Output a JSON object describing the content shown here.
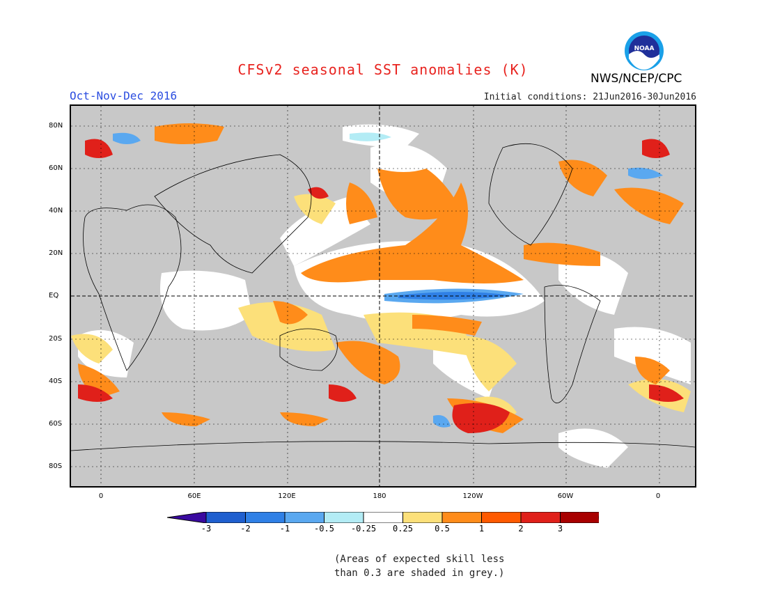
{
  "header": {
    "title": "CFSv2 seasonal SST anomalies (K)",
    "period": "Oct-Nov-Dec 2016",
    "initial_conditions": "Initial conditions: 21Jun2016-30Jun2016",
    "agency": "NWS/NCEP/CPC",
    "logo_text": "NOAA"
  },
  "axes": {
    "lat_ticks": [
      "80N",
      "60N",
      "40N",
      "20N",
      "EQ",
      "20S",
      "40S",
      "60S",
      "80S"
    ],
    "lon_ticks": [
      "0",
      "60E",
      "120E",
      "180",
      "120W",
      "60W",
      "0"
    ]
  },
  "colorbar": {
    "labels": [
      "-3",
      "-2",
      "-1",
      "-0.5",
      "-0.25",
      "0.25",
      "0.5",
      "1",
      "2",
      "3"
    ],
    "colors": [
      "#3a0aa0",
      "#1f5fcf",
      "#2f80e6",
      "#5aa8f0",
      "#b3ecf5",
      "#ffffff",
      "#fce07a",
      "#ff8c1a",
      "#ff5a00",
      "#e0201a",
      "#a80000",
      "#6b4234"
    ]
  },
  "note": {
    "line1": "(Areas of expected skill less",
    "line2": "than 0.3 are shaded in grey.)"
  }
}
